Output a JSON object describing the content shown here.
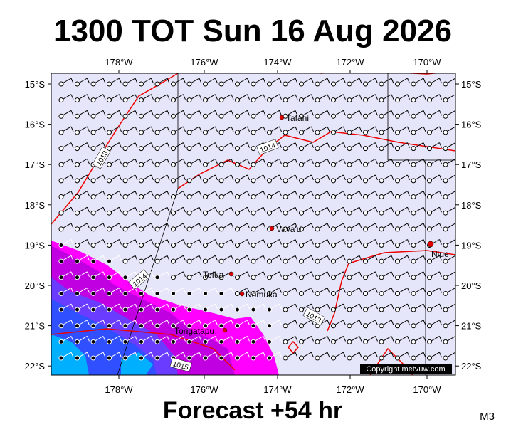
{
  "header": {
    "title": "1300 TOT Sun 16 Aug 2026"
  },
  "footer": {
    "forecast": "Forecast +54 hr",
    "code": "M3"
  },
  "axes": {
    "longitudes": [
      "178°W",
      "176°W",
      "174°W",
      "172°W",
      "170°W"
    ],
    "latitudes": [
      "15°S",
      "16°S",
      "17°S",
      "18°S",
      "19°S",
      "20°S",
      "21°S",
      "22°S"
    ]
  },
  "places": [
    "Tafahi",
    "Vava'u",
    "Niue",
    "Tofua",
    "Nomuka",
    "Tongatapu"
  ],
  "isobar_labels": [
    "1013",
    "1014",
    "1014",
    "1013",
    "1015"
  ],
  "copyright": "Copyright metvuw.com"
}
